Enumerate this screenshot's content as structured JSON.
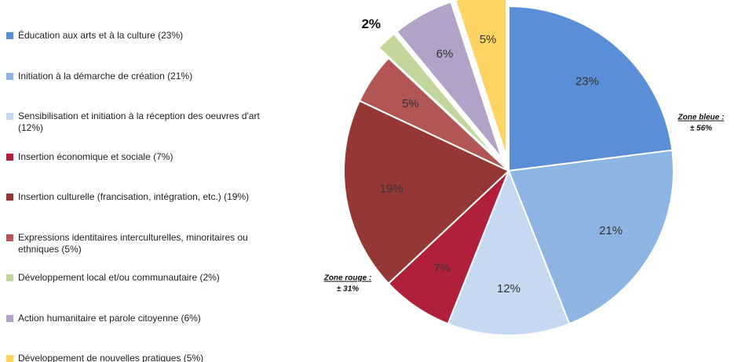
{
  "chart_data": {
    "type": "pie",
    "categories": [
      "Éducation aux arts et à la culture (23%)",
      "Initiation à la démarche de création (21%)",
      "Sensibilisation et initiation à la réception des oeuvres d'art (12%)",
      "Insertion économique et sociale (7%)",
      "Insertion culturelle (francisation, intégration, etc.) (19%)",
      "Expressions identitaires interculturelles, minoritaires ou ethniques (5%)",
      "Développement local et/ou communautaire (2%)",
      "Action humanitaire et parole citoyenne (6%)",
      "Développement de nouvelles pratiques (5%)"
    ],
    "values": [
      23,
      21,
      12,
      7,
      19,
      5,
      2,
      6,
      5
    ],
    "value_labels": [
      "23%",
      "21%",
      "12%",
      "7%",
      "19%",
      "5%",
      "2%",
      "6%",
      "5%"
    ],
    "colors": [
      "#5a8fd8",
      "#8eb4e3",
      "#c6d9f1",
      "#b0203a",
      "#953735",
      "#b25555",
      "#c3d69b",
      "#b3a2c7",
      "#fdd462"
    ],
    "exploded": [
      false,
      false,
      false,
      false,
      false,
      false,
      true,
      true,
      true
    ],
    "legend": "left",
    "annotations": [
      [
        "Zone bleue :",
        "± 56%"
      ],
      [
        "Zone rouge :",
        "± 31%"
      ]
    ]
  }
}
